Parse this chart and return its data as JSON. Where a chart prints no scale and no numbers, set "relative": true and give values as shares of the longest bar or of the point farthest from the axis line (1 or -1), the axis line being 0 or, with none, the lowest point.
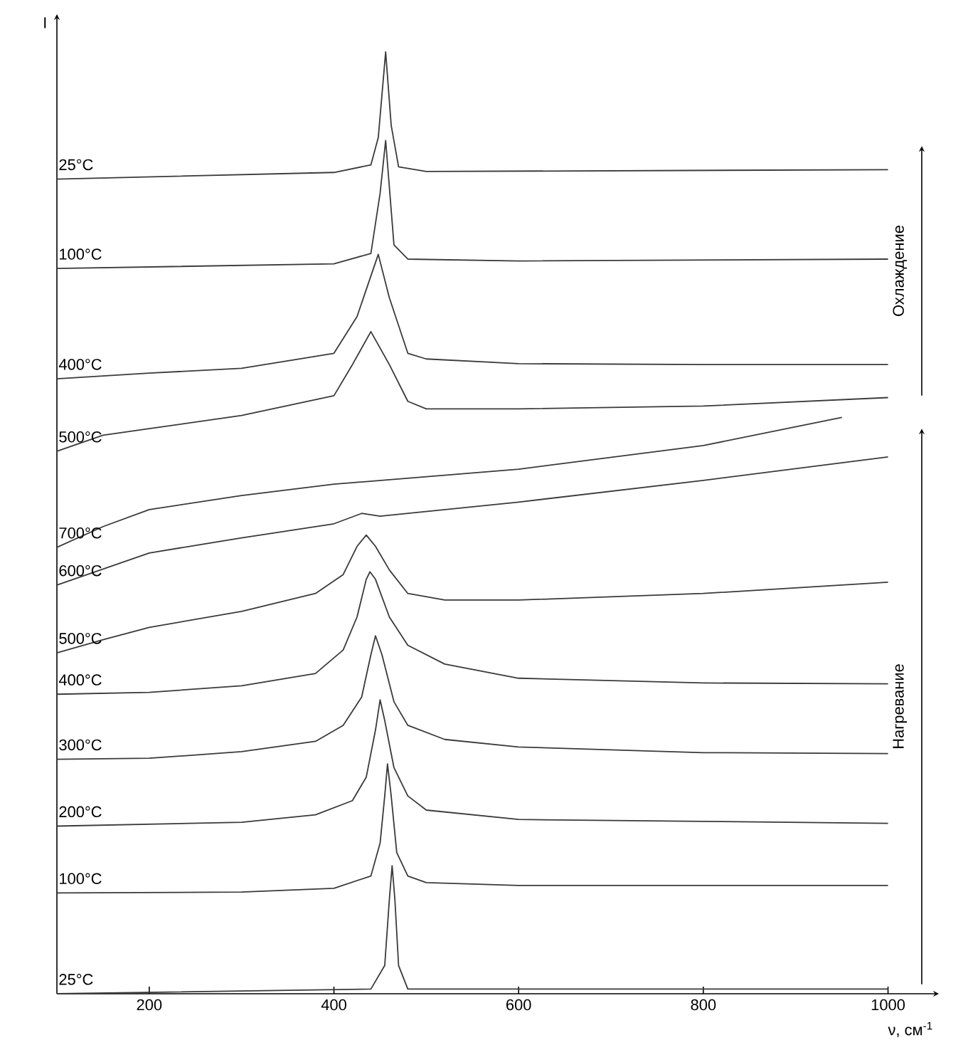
{
  "chart_data": {
    "type": "line",
    "relative": true,
    "ylabel": "I",
    "xlabel": "ν, см$^{-1}$",
    "xlim": [
      100,
      1055
    ],
    "xticks": [
      200,
      400,
      600,
      800,
      1000
    ],
    "annotations": [
      "Охлаждение",
      "Нагревание"
    ],
    "series": [
      {
        "name": "25°C",
        "color": "#3a3a3a",
        "x": [
          100,
          440,
          455,
          460,
          463,
          466,
          470,
          480,
          1000
        ],
        "values": [
          0.0,
          0.005,
          0.03,
          0.1,
          0.136,
          0.1,
          0.03,
          0.005,
          0.005
        ]
      },
      {
        "name": "100°C",
        "color": "#3a3a3a",
        "x": [
          100,
          300,
          400,
          440,
          450,
          455,
          458,
          462,
          468,
          480,
          500,
          600,
          800,
          1000
        ],
        "values": [
          0.107,
          0.108,
          0.112,
          0.125,
          0.16,
          0.21,
          0.244,
          0.21,
          0.15,
          0.125,
          0.118,
          0.115,
          0.115,
          0.115
        ]
      },
      {
        "name": "200°C",
        "color": "#3a3a3a",
        "x": [
          100,
          300,
          380,
          420,
          435,
          445,
          450,
          455,
          465,
          480,
          500,
          600,
          800,
          1000
        ],
        "values": [
          0.178,
          0.182,
          0.19,
          0.205,
          0.23,
          0.28,
          0.312,
          0.29,
          0.24,
          0.21,
          0.195,
          0.185,
          0.183,
          0.181
        ]
      },
      {
        "name": "300°C",
        "color": "#3a3a3a",
        "x": [
          100,
          200,
          300,
          380,
          410,
          430,
          440,
          445,
          452,
          465,
          480,
          520,
          600,
          800,
          1000
        ],
        "values": [
          0.249,
          0.25,
          0.257,
          0.268,
          0.285,
          0.315,
          0.36,
          0.38,
          0.36,
          0.31,
          0.285,
          0.27,
          0.262,
          0.256,
          0.255
        ]
      },
      {
        "name": "400°C",
        "color": "#3a3a3a",
        "x": [
          100,
          200,
          300,
          380,
          410,
          425,
          435,
          439,
          445,
          460,
          480,
          520,
          600,
          800,
          1000
        ],
        "values": [
          0.318,
          0.32,
          0.327,
          0.34,
          0.365,
          0.4,
          0.44,
          0.448,
          0.44,
          0.4,
          0.37,
          0.35,
          0.335,
          0.33,
          0.329
        ]
      },
      {
        "name": "500°C",
        "color": "#3a3a3a",
        "x": [
          100,
          150,
          200,
          300,
          380,
          410,
          425,
          435,
          445,
          460,
          480,
          520,
          600,
          800,
          1000
        ],
        "values": [
          0.362,
          0.376,
          0.389,
          0.406,
          0.425,
          0.445,
          0.475,
          0.487,
          0.475,
          0.45,
          0.425,
          0.418,
          0.418,
          0.425,
          0.437
        ]
      },
      {
        "name": "600°C",
        "color": "#3a3a3a",
        "x": [
          100,
          150,
          200,
          300,
          400,
          430,
          450,
          600,
          800,
          1000
        ],
        "values": [
          0.434,
          0.451,
          0.468,
          0.484,
          0.499,
          0.51,
          0.507,
          0.522,
          0.545,
          0.57
        ]
      },
      {
        "name": "700°C",
        "color": "#3a3a3a",
        "x": [
          100,
          150,
          200,
          300,
          400,
          500,
          600,
          800,
          950
        ],
        "values": [
          0.474,
          0.496,
          0.514,
          0.529,
          0.541,
          0.549,
          0.557,
          0.582,
          0.612
        ]
      },
      {
        "name": "500°C",
        "color": "#3a3a3a",
        "x": [
          100,
          150,
          200,
          300,
          400,
          420,
          440,
          460,
          480,
          500,
          600,
          800,
          1000
        ],
        "values": [
          0.576,
          0.593,
          0.6,
          0.614,
          0.635,
          0.668,
          0.703,
          0.668,
          0.629,
          0.621,
          0.621,
          0.624,
          0.633
        ]
      },
      {
        "name": "400°C",
        "color": "#3a3a3a",
        "x": [
          100,
          200,
          300,
          400,
          425,
          448,
          460,
          480,
          500,
          600,
          800,
          1000
        ],
        "values": [
          0.653,
          0.659,
          0.664,
          0.68,
          0.719,
          0.785,
          0.739,
          0.68,
          0.674,
          0.669,
          0.668,
          0.668
        ]
      },
      {
        "name": "100°C",
        "color": "#3a3a3a",
        "x": [
          100,
          400,
          440,
          450,
          456,
          465,
          480,
          600,
          1000
        ],
        "values": [
          0.77,
          0.775,
          0.786,
          0.85,
          0.906,
          0.795,
          0.78,
          0.778,
          0.78
        ]
      },
      {
        "name": "25°C",
        "color": "#3a3a3a",
        "x": [
          100,
          400,
          440,
          448,
          456,
          462,
          470,
          500,
          1000
        ],
        "values": [
          0.865,
          0.872,
          0.88,
          0.909,
          1.0,
          0.922,
          0.878,
          0.873,
          0.875
        ]
      }
    ]
  }
}
